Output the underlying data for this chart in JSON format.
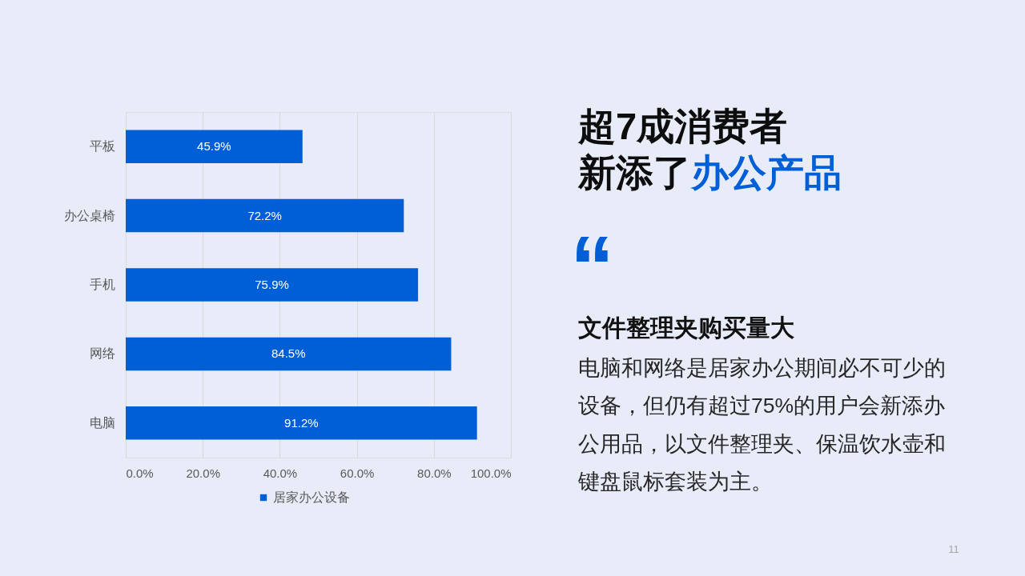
{
  "chart_data": {
    "type": "bar",
    "orientation": "horizontal",
    "title": "超7成消费者新添了办公产品",
    "categories": [
      "平板",
      "办公桌椅",
      "手机",
      "网络",
      "电脑"
    ],
    "series": [
      {
        "name": "居家办公设备",
        "color": "#005fd6",
        "values": [
          45.9,
          72.2,
          75.9,
          84.5,
          91.2
        ],
        "value_labels": [
          "45.9%",
          "72.2%",
          "75.9%",
          "84.5%",
          "91.2%"
        ]
      }
    ],
    "xlim": [
      0,
      100
    ],
    "xticks": [
      {
        "value": 0,
        "label": "0.0%"
      },
      {
        "value": 20,
        "label": "20.0%"
      },
      {
        "value": 40,
        "label": "40.0%"
      },
      {
        "value": 60,
        "label": "60.0%"
      },
      {
        "value": 80,
        "label": "80.0%"
      },
      {
        "value": 100,
        "label": "100.0%"
      }
    ],
    "grid": "x",
    "legend": "bottom",
    "annotations": [
      "文件整理夹购买量大",
      "电脑和网络是居家办公期间必不可少的设备，但仍有超过75%的用户会新添办公用品，以文件整理夹、保温饮水壶和键盘鼠标套装为主。",
      "“",
      "11"
    ]
  }
}
